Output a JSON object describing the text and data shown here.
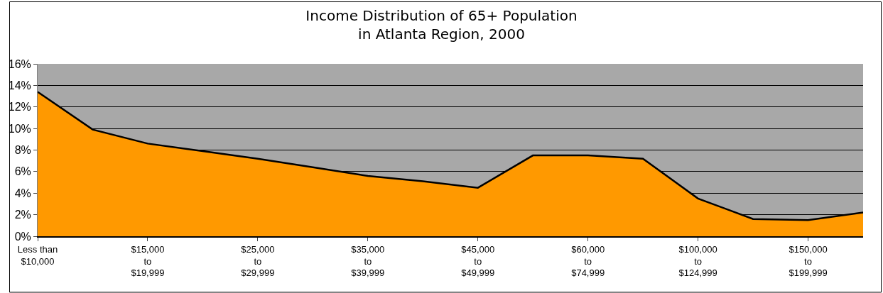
{
  "chart_data": {
    "type": "area",
    "title": "Income Distribution of 65+ Population\nin Atlanta Region, 2000",
    "categories": [
      "Less than\n$10,000",
      null,
      "$15,000\nto\n$19,999",
      null,
      "$25,000\nto\n$29,999",
      null,
      "$35,000\nto\n$39,999",
      null,
      "$45,000\nto\n$49,999",
      null,
      "$60,000\nto\n$74,999",
      null,
      "$100,000\nto\n$124,999",
      null,
      "$150,000\nto\n$199,999",
      null
    ],
    "series": [
      {
        "color": "#ff9900",
        "values": [
          13.4,
          9.9,
          8.6,
          7.9,
          7.2,
          6.4,
          5.6,
          5.1,
          4.5,
          7.5,
          7.5,
          7.2,
          3.5,
          1.6,
          1.5,
          2.2
        ]
      }
    ],
    "ylim": [
      0,
      16
    ],
    "yticks": [
      {
        "value": 0,
        "label": "0%"
      },
      {
        "value": 2,
        "label": "2%"
      },
      {
        "value": 4,
        "label": "4%"
      },
      {
        "value": 6,
        "label": "6%"
      },
      {
        "value": 8,
        "label": "8%"
      },
      {
        "value": 10,
        "label": "10%"
      },
      {
        "value": 12,
        "label": "12%"
      },
      {
        "value": 14,
        "label": "14%"
      },
      {
        "value": 16,
        "label": "16%"
      }
    ],
    "grid": "y",
    "legend": false
  }
}
